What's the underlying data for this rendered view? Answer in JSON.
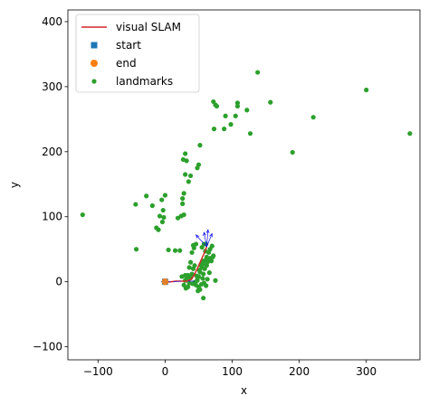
{
  "chart_data": {
    "type": "scatter",
    "xlabel": "x",
    "ylabel": "y",
    "xlim": [
      -145,
      380
    ],
    "ylim": [
      -120,
      418
    ],
    "xticks": [
      -100,
      0,
      100,
      200,
      300
    ],
    "yticks": [
      -100,
      0,
      100,
      200,
      300,
      400
    ],
    "grid": false,
    "legend_position": "top-left",
    "legend": [
      {
        "label": "visual SLAM",
        "marker": "line",
        "color": "#d62728"
      },
      {
        "label": "start",
        "marker": "square",
        "color": "#1f77b4"
      },
      {
        "label": "end",
        "marker": "circle",
        "color": "#ff7f0e"
      },
      {
        "label": "landmarks",
        "marker": "dot",
        "color": "#2ca02c"
      }
    ],
    "series": [
      {
        "name": "visual SLAM",
        "kind": "line",
        "color": "#d62728",
        "points": [
          [
            0,
            0
          ],
          [
            8,
            0
          ],
          [
            16,
            1
          ],
          [
            24,
            1
          ],
          [
            32,
            1
          ],
          [
            38,
            3
          ],
          [
            42,
            8
          ],
          [
            45,
            14
          ],
          [
            48,
            20
          ],
          [
            51,
            27
          ],
          [
            54,
            34
          ],
          [
            57,
            41
          ],
          [
            59,
            46
          ],
          [
            61,
            51
          ],
          [
            62,
            54
          ]
        ]
      },
      {
        "name": "start",
        "kind": "square",
        "color": "#1f77b4",
        "points": [
          [
            0,
            0
          ]
        ]
      },
      {
        "name": "end",
        "kind": "circle",
        "color": "#ff7f0e",
        "points": [
          [
            0,
            0
          ]
        ]
      },
      {
        "name": "landmarks",
        "kind": "dot",
        "color": "#2ca02c",
        "points": [
          [
            -123,
            103
          ],
          [
            -44,
            119
          ],
          [
            -28,
            132
          ],
          [
            -19,
            117
          ],
          [
            -13,
            83
          ],
          [
            -10,
            80
          ],
          [
            -8,
            101
          ],
          [
            -5,
            126
          ],
          [
            -2,
            99
          ],
          [
            0,
            133
          ],
          [
            -3,
            110
          ],
          [
            -4,
            92
          ],
          [
            -43,
            50
          ],
          [
            5,
            49
          ],
          [
            15,
            48
          ],
          [
            22,
            48
          ],
          [
            19,
            98
          ],
          [
            24,
            101
          ],
          [
            28,
            103
          ],
          [
            26,
            128
          ],
          [
            28,
            136
          ],
          [
            26,
            120
          ],
          [
            27,
            188
          ],
          [
            30,
            197
          ],
          [
            32,
            186
          ],
          [
            30,
            165
          ],
          [
            35,
            154
          ],
          [
            38,
            163
          ],
          [
            48,
            175
          ],
          [
            50,
            180
          ],
          [
            52,
            210
          ],
          [
            75,
            272
          ],
          [
            72,
            277
          ],
          [
            77,
            270
          ],
          [
            73,
            235
          ],
          [
            88,
            235
          ],
          [
            90,
            255
          ],
          [
            98,
            242
          ],
          [
            108,
            275
          ],
          [
            108,
            270
          ],
          [
            105,
            255
          ],
          [
            122,
            264
          ],
          [
            127,
            228
          ],
          [
            138,
            322
          ],
          [
            157,
            276
          ],
          [
            190,
            199
          ],
          [
            221,
            253
          ],
          [
            300,
            295
          ],
          [
            365,
            228
          ],
          [
            32,
            5
          ],
          [
            34,
            10
          ],
          [
            30,
            2
          ],
          [
            36,
            -2
          ],
          [
            38,
            6
          ],
          [
            40,
            12
          ],
          [
            42,
            20
          ],
          [
            44,
            25
          ],
          [
            46,
            -5
          ],
          [
            48,
            2
          ],
          [
            50,
            8
          ],
          [
            52,
            15
          ],
          [
            55,
            22
          ],
          [
            58,
            28
          ],
          [
            60,
            33
          ],
          [
            62,
            38
          ],
          [
            65,
            45
          ],
          [
            67,
            50
          ],
          [
            70,
            55
          ],
          [
            72,
            40
          ],
          [
            75,
            2
          ],
          [
            64,
            31
          ],
          [
            36,
            22
          ],
          [
            38,
            30
          ],
          [
            40,
            45
          ],
          [
            43,
            52
          ],
          [
            46,
            58
          ],
          [
            48,
            3
          ],
          [
            50,
            -8
          ],
          [
            52,
            -12
          ],
          [
            54,
            -4
          ],
          [
            56,
            5
          ],
          [
            57,
            12
          ],
          [
            59,
            20
          ],
          [
            62,
            25
          ],
          [
            64,
            35
          ],
          [
            67,
            36
          ],
          [
            69,
            32
          ],
          [
            71,
            38
          ],
          [
            60,
            47
          ],
          [
            55,
            53
          ],
          [
            58,
            58
          ],
          [
            28,
            -5
          ],
          [
            31,
            -10
          ],
          [
            34,
            -8
          ],
          [
            41,
            -3
          ],
          [
            44,
            -1
          ],
          [
            47,
            9
          ],
          [
            51,
            18
          ],
          [
            53,
            26
          ],
          [
            56,
            32
          ],
          [
            58,
            -2
          ],
          [
            61,
            -6
          ],
          [
            63,
            4
          ],
          [
            66,
            14
          ],
          [
            42,
            56
          ],
          [
            30,
            10
          ],
          [
            57,
            -25
          ],
          [
            49,
            -14
          ],
          [
            25,
            8
          ],
          [
            61,
            58
          ]
        ]
      },
      {
        "name": "heading",
        "kind": "arrows",
        "color": "#1010ee",
        "points": [
          [
            62,
            54
          ],
          [
            62,
            54
          ],
          [
            62,
            54
          ],
          [
            62,
            54
          ]
        ],
        "vectors": [
          [
            -4,
            22
          ],
          [
            2,
            26
          ],
          [
            8,
            20
          ],
          [
            -16,
            18
          ]
        ]
      }
    ]
  }
}
